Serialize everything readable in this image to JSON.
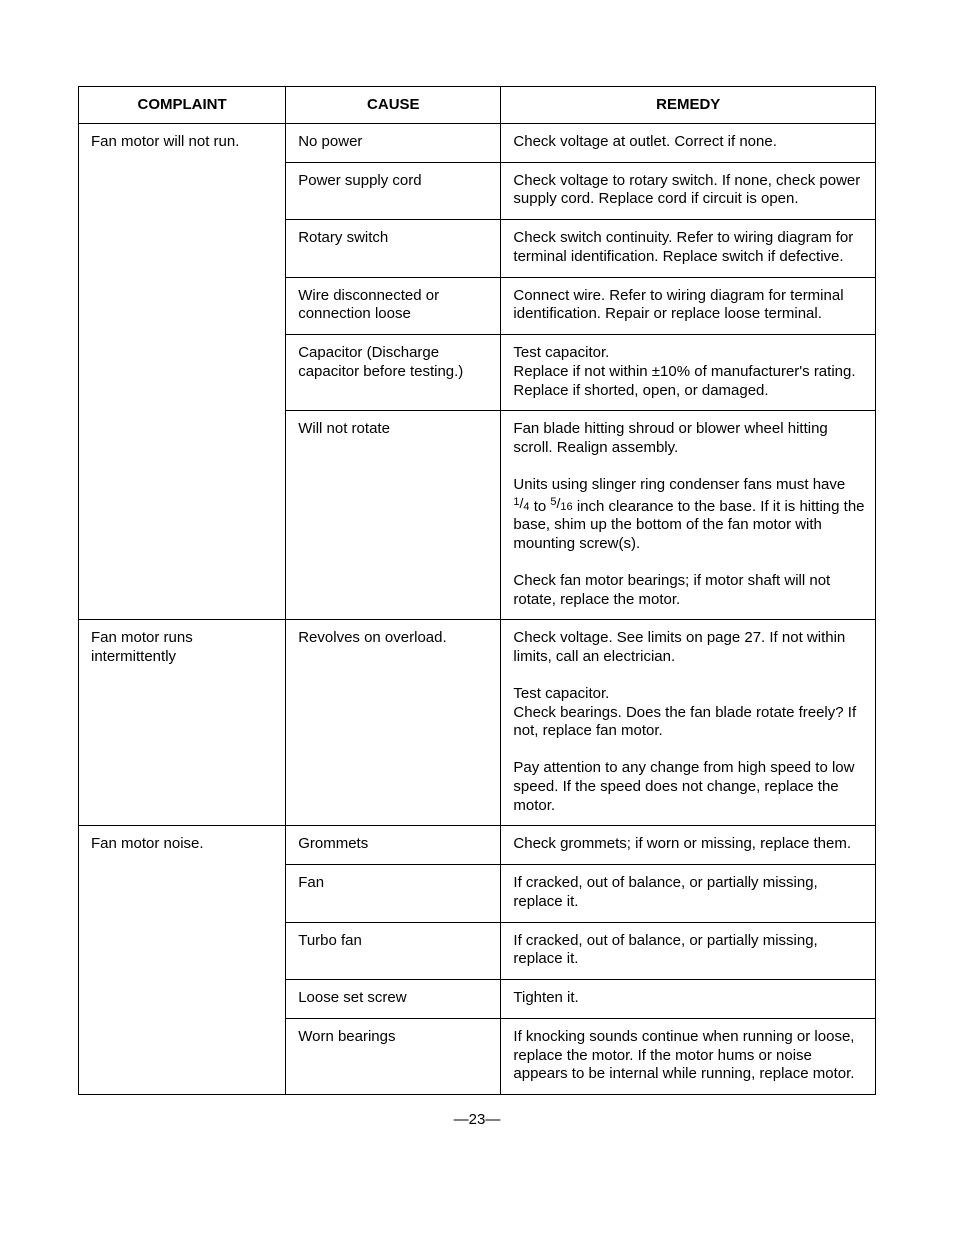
{
  "headers": {
    "complaint": "COMPLAINT",
    "cause": "CAUSE",
    "remedy": "REMEDY"
  },
  "groups": [
    {
      "complaint": "Fan motor will not run.",
      "causes": [
        {
          "cause": "No power",
          "remedies": [
            "Check voltage at outlet. Correct if none."
          ]
        },
        {
          "cause": "Power supply cord",
          "remedies": [
            "Check voltage to rotary switch. If none, check power supply cord. Replace cord if circuit is open."
          ]
        },
        {
          "cause": "Rotary switch",
          "remedies": [
            "Check switch continuity. Refer to wiring diagram for terminal identification. Replace switch if defective."
          ]
        },
        {
          "cause": "Wire disconnected or connection loose",
          "remedies": [
            "Connect wire. Refer to wiring diagram for terminal identification. Repair or replace loose terminal."
          ]
        },
        {
          "cause": "Capacitor (Discharge capacitor before testing.)",
          "remedies": [
            "Test capacitor.\nReplace if not within ±10% of manufacturer's rating. Replace if shorted, open, or damaged."
          ]
        },
        {
          "cause": "Will not rotate",
          "remedies": [
            "Fan blade hitting shroud or blower wheel hitting scroll. Realign assembly.",
            "Units using slinger ring condenser fans must have {FRAC14} to {FRAC516} inch clearance to the base. If it is hitting the base, shim up the bottom of the fan motor with mounting screw(s).",
            "Check fan motor bearings; if motor shaft will not rotate, replace the motor."
          ]
        }
      ]
    },
    {
      "complaint": "Fan motor runs intermittently",
      "causes": [
        {
          "cause": "Revolves on overload.",
          "remedies": [
            "Check voltage. See limits on page 27. If not within limits, call an electrician.",
            "Test capacitor.\nCheck bearings. Does the fan blade rotate freely? If not, replace fan motor.",
            "Pay attention to any change from high speed to low speed. If the speed does not change, replace the motor."
          ]
        }
      ]
    },
    {
      "complaint": "Fan motor noise.",
      "causes": [
        {
          "cause": "Grommets",
          "remedies": [
            "Check grommets; if worn or missing, replace them."
          ]
        },
        {
          "cause": "Fan",
          "remedies": [
            "If cracked, out of balance, or partially missing, replace it."
          ]
        },
        {
          "cause": "Turbo fan",
          "remedies": [
            "If cracked, out of balance, or partially missing, replace it."
          ]
        },
        {
          "cause": "Loose set screw",
          "remedies": [
            "Tighten it."
          ]
        },
        {
          "cause": "Worn bearings",
          "remedies": [
            "If knocking sounds continue when running or loose, replace the motor. If the motor hums or noise appears to be internal while running, replace motor."
          ]
        }
      ]
    }
  ],
  "page_number": "—23—"
}
